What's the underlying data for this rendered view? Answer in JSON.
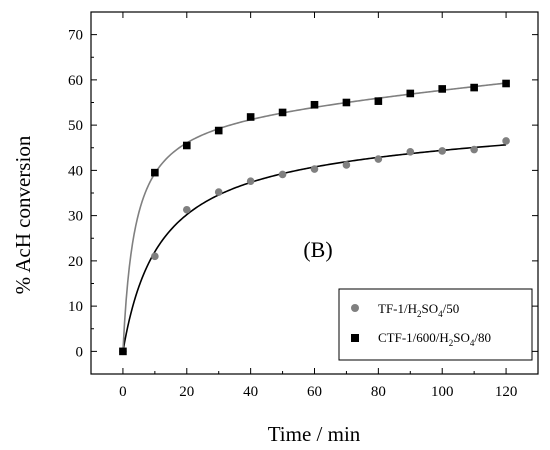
{
  "chart_data": {
    "type": "scatter",
    "xlabel": "Time / min",
    "ylabel": "% AcH conversion",
    "xlim": [
      -10,
      130
    ],
    "ylim": [
      -5,
      75
    ],
    "x_ticks": [
      0,
      20,
      40,
      60,
      80,
      100,
      120
    ],
    "y_ticks": [
      0,
      10,
      20,
      30,
      40,
      50,
      60,
      70
    ],
    "annotation": "(B)",
    "legend_position": "bottom-right",
    "grid": false,
    "series": [
      {
        "name": "TF-1/H2SO4/50",
        "legend_parts": [
          "TF-1/H",
          "2",
          "SO",
          "4",
          "/50"
        ],
        "marker": "circle",
        "color": "#808080",
        "fit_color": "#000000",
        "x": [
          0,
          10,
          20,
          30,
          40,
          50,
          60,
          70,
          80,
          90,
          100,
          110,
          120
        ],
        "y": [
          0,
          21,
          31.3,
          35.2,
          37.6,
          39.1,
          40.3,
          41.2,
          42.5,
          44.1,
          44.3,
          44.6,
          46.5
        ]
      },
      {
        "name": "CTF-1/600/H2SO4/80",
        "legend_parts": [
          "CTF-1/600/H",
          "2",
          "SO",
          "4",
          "/80"
        ],
        "marker": "square",
        "color": "#000000",
        "fit_color": "#808080",
        "x": [
          0,
          10,
          20,
          30,
          40,
          50,
          60,
          70,
          80,
          90,
          100,
          110,
          120
        ],
        "y": [
          0,
          39.5,
          45.5,
          48.8,
          51.8,
          52.8,
          54.5,
          55,
          55.3,
          57,
          58,
          58.3,
          59.2
        ]
      }
    ]
  }
}
